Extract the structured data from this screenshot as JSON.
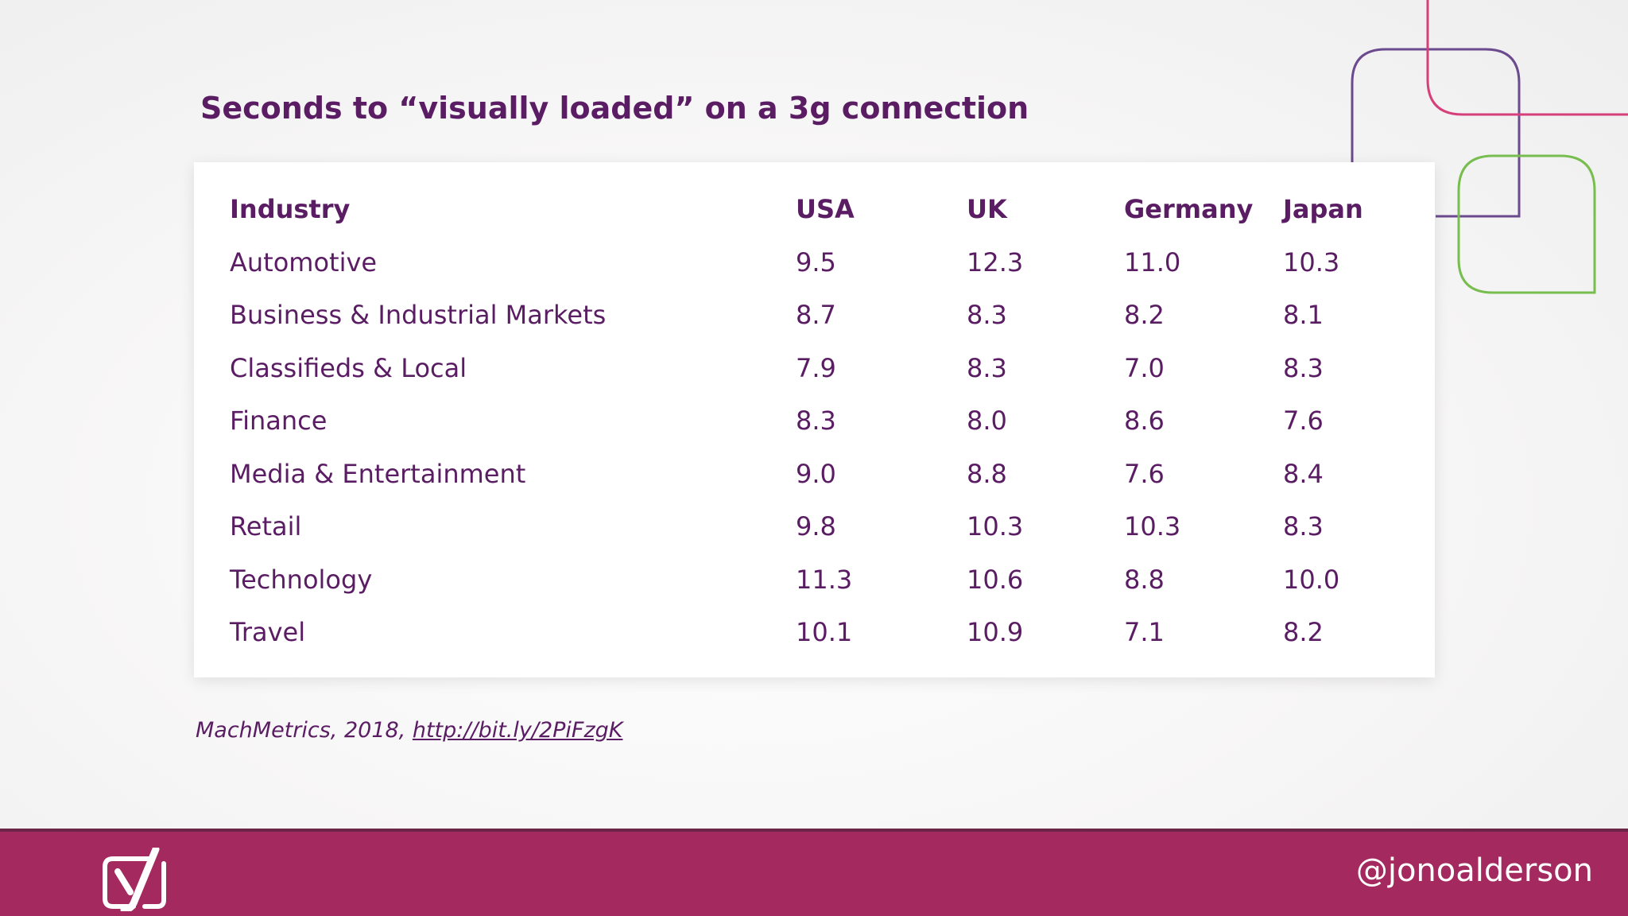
{
  "slide": {
    "title": "Seconds to “visually loaded” on a 3g connection",
    "citation_prefix": "MachMetrics, 2018, ",
    "citation_link": "http://bit.ly/2PiFzgK",
    "handle": "@jonoalderson"
  },
  "table": {
    "headers": [
      "Industry",
      "USA",
      "UK",
      "Germany",
      "Japan"
    ],
    "rows": [
      [
        "Automotive",
        "9.5",
        "12.3",
        "11.0",
        "10.3"
      ],
      [
        "Business & Industrial Markets",
        "8.7",
        "8.3",
        "8.2",
        "8.1"
      ],
      [
        "Classifieds & Local",
        "7.9",
        "8.3",
        "7.0",
        "8.3"
      ],
      [
        "Finance",
        "8.3",
        "8.0",
        "8.6",
        "7.6"
      ],
      [
        "Media & Entertainment",
        "9.0",
        "8.8",
        "7.6",
        "8.4"
      ],
      [
        "Retail",
        "9.8",
        "10.3",
        "10.3",
        "8.3"
      ],
      [
        "Technology",
        "11.3",
        "10.6",
        "8.8",
        "10.0"
      ],
      [
        "Travel",
        "10.1",
        "10.9",
        "7.1",
        "8.2"
      ]
    ]
  },
  "colors": {
    "primary_purple": "#5a1d63",
    "footer_magenta": "#a4295f",
    "deco_purple": "#6b4a8e",
    "deco_pink": "#d63f79",
    "deco_green": "#77bd4f"
  },
  "icons": {
    "logo": "yoast-logo-icon"
  }
}
